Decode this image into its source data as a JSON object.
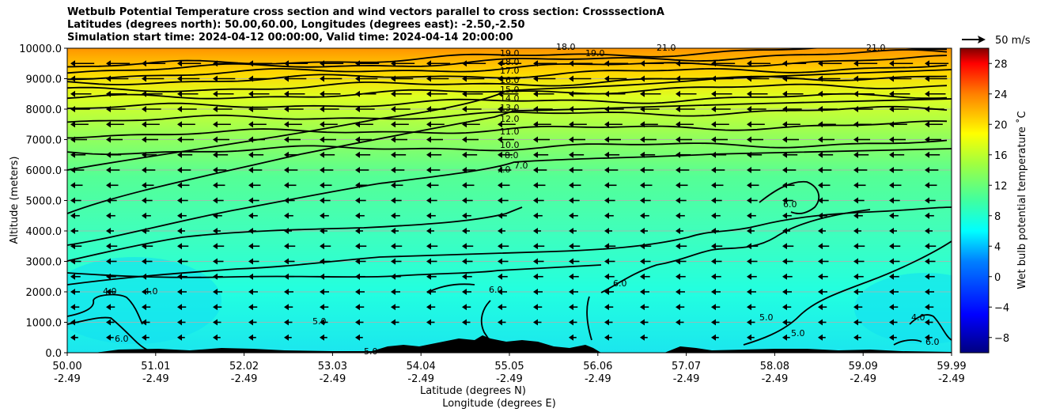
{
  "titles": [
    "Wetbulb Potential Temperature cross section and wind vectors parallel to cross section: CrosssectionA",
    "Latitudes (degrees north): 50.00,60.00, Longitudes (degrees east): -2.50,-2.50",
    "Simulation start time: 2024-04-12 00:00:00, Valid time: 2024-04-14 20:00:00"
  ],
  "chart_data": {
    "type": "contour",
    "ylabel": "Altitude (meters)",
    "xlabel_lat": "Latitude (degrees N)",
    "xlabel_lon": "Longitude (degrees E)",
    "ylim": [
      0,
      10000
    ],
    "xlim": [
      50.0,
      59.99
    ],
    "y_ticks": [
      "0.0",
      "1000.0",
      "2000.0",
      "3000.0",
      "4000.0",
      "5000.0",
      "6000.0",
      "7000.0",
      "8000.0",
      "9000.0",
      "10000.0"
    ],
    "x_ticks_lat": [
      "50.00",
      "51.01",
      "52.02",
      "53.03",
      "54.04",
      "55.05",
      "56.06",
      "57.07",
      "58.08",
      "59.09",
      "59.99"
    ],
    "x_ticks_lon": [
      "-2.49",
      "-2.49",
      "-2.49",
      "-2.49",
      "-2.49",
      "-2.49",
      "-2.49",
      "-2.49",
      "-2.49",
      "-2.49",
      "-2.49"
    ],
    "colorbar": {
      "label": "Wet bulb potential temperature ˚C",
      "range": [
        -10,
        30
      ],
      "ticks": [
        "−8",
        "−4",
        "0",
        "4",
        "8",
        "12",
        "16",
        "20",
        "24",
        "28"
      ],
      "colors": [
        "#000080",
        "#0000ff",
        "#0080ff",
        "#00ffff",
        "#80ff80",
        "#ffff00",
        "#ff8000",
        "#ff0000",
        "#800000"
      ]
    },
    "wind_key": {
      "label": "50 m/s"
    },
    "contours": [
      {
        "level": 10.0,
        "alt": 6750
      },
      {
        "level": 11.0,
        "alt": 7350
      },
      {
        "level": 12.0,
        "alt": 7850
      },
      {
        "level": 13.0,
        "alt": 8300
      },
      {
        "level": 14.0,
        "alt": 8650
      },
      {
        "level": 15.0,
        "alt": 8950
      },
      {
        "level": 16.0,
        "alt": 9250
      },
      {
        "level": 17.0,
        "alt": 9500
      },
      {
        "level": 18.0,
        "alt": 9720
      },
      {
        "level": 19.0,
        "alt": 9900
      }
    ],
    "contour_labels": [
      "19.0",
      "18.0",
      "17.0",
      "16.0",
      "15.0",
      "14.0",
      "13.0",
      "12.0",
      "11.0",
      "10.0",
      "8.0",
      "7.0",
      "7.0",
      "6.0",
      "6.0",
      "6.0",
      "5.0",
      "5.0",
      "4.0",
      "4.0",
      "4.0",
      "6.0",
      "5.0",
      "5.0",
      "6.0",
      "19.0",
      "18.0",
      "21.0",
      "21.0"
    ]
  }
}
